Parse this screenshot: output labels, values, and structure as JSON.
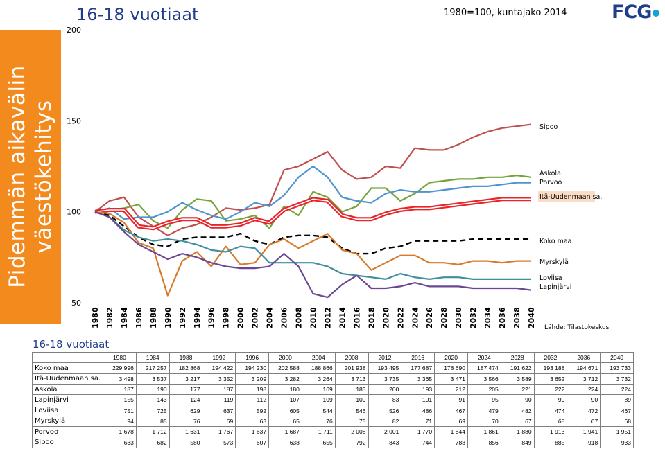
{
  "sidebar_text": [
    "Pidemmän aikavälin",
    "väestökehitys"
  ],
  "title": "16-18 vuotiaat",
  "subtitle": "1980=100, kuntajako 2014",
  "logo": "FCG",
  "source": "Lähde: Tilastokeskus",
  "table_title": "16-18 vuotiaat",
  "colors": {
    "sidebar": "#f28a1e",
    "title": "#1f3d8a",
    "Sipoo": "#c0504d",
    "Askola": "#77a33d",
    "Porvoo": "#4f94cd",
    "Itä-Uudenmaan sa.": "#e8242b",
    "Koko maa": "#000000",
    "Myrskylä": "#d97a2a",
    "Loviisa": "#3f8f9e",
    "Lapinjärvi": "#6b4793"
  },
  "chart_data": {
    "type": "line",
    "title": "16-18 vuotiaat",
    "subtitle": "1980=100, kuntajako 2014",
    "xlabel": "",
    "ylabel": "",
    "x": [
      1980,
      1982,
      1984,
      1986,
      1988,
      1990,
      1992,
      1994,
      1996,
      1998,
      2000,
      2002,
      2004,
      2006,
      2008,
      2010,
      2012,
      2014,
      2016,
      2018,
      2020,
      2022,
      2024,
      2026,
      2028,
      2030,
      2032,
      2034,
      2036,
      2038,
      2040
    ],
    "x_tick_labels": [
      "1980",
      "1982",
      "1984",
      "1986",
      "1988",
      "1990",
      "1992",
      "1994",
      "1996",
      "1998",
      "2000",
      "2002",
      "2004",
      "2006",
      "2008",
      "2010",
      "2012",
      "2014",
      "2016",
      "2018",
      "2020",
      "2022",
      "2024",
      "2026",
      "2028",
      "2030",
      "2032",
      "2034",
      "2036",
      "2038",
      "2040"
    ],
    "ylim": [
      50,
      200
    ],
    "y_ticks": [
      50,
      100,
      150,
      200
    ],
    "grid": false,
    "legend": "right, labels at line ends",
    "series": [
      {
        "name": "Sipoo",
        "color": "#c0504d",
        "dash": false,
        "width": 2.2,
        "values": [
          100,
          106,
          108,
          97,
          92,
          87,
          91,
          93,
          97,
          102,
          101,
          102,
          104,
          123,
          125,
          129,
          133,
          123,
          118,
          119,
          125,
          124,
          135,
          134,
          134,
          137,
          141,
          144,
          146,
          147,
          148
        ]
      },
      {
        "name": "Askola",
        "color": "#77a33d",
        "dash": false,
        "width": 2.2,
        "values": [
          100,
          101,
          102,
          104,
          95,
          91,
          101,
          107,
          106,
          95,
          96,
          98,
          91,
          103,
          98,
          111,
          108,
          100,
          103,
          113,
          113,
          106,
          110,
          116,
          117,
          118,
          118,
          119,
          119,
          120,
          119
        ]
      },
      {
        "name": "Porvoo",
        "color": "#4f94cd",
        "dash": false,
        "width": 2.2,
        "values": [
          100,
          102,
          96,
          97,
          97,
          100,
          105,
          101,
          98,
          96,
          100,
          105,
          103,
          109,
          119,
          125,
          119,
          108,
          106,
          105,
          110,
          112,
          111,
          111,
          112,
          113,
          114,
          114,
          115,
          116,
          116
        ]
      },
      {
        "name": "Itä-Uudenmaan sa.",
        "color": "#e8242b",
        "dash": false,
        "width": 2.2,
        "double": true,
        "values": [
          100,
          101,
          101,
          92,
          91,
          94,
          96,
          96,
          92,
          92,
          93,
          96,
          94,
          101,
          104,
          107,
          106,
          98,
          96,
          96,
          99,
          101,
          102,
          102,
          103,
          104,
          105,
          106,
          107,
          107,
          107
        ]
      },
      {
        "name": "Koko maa",
        "color": "#000000",
        "dash": true,
        "width": 2.4,
        "values": [
          100,
          98,
          92,
          86,
          82,
          81,
          85,
          86,
          86,
          86,
          88,
          84,
          82,
          86,
          87,
          87,
          86,
          80,
          77,
          77,
          80,
          81,
          84,
          84,
          84,
          84,
          85,
          85,
          85,
          85,
          85
        ]
      },
      {
        "name": "Myrskylä",
        "color": "#d97a2a",
        "dash": false,
        "width": 2.2,
        "values": [
          100,
          99,
          94,
          83,
          80,
          54,
          73,
          78,
          70,
          81,
          71,
          72,
          82,
          85,
          80,
          84,
          88,
          79,
          77,
          68,
          72,
          76,
          76,
          72,
          72,
          71,
          73,
          73,
          72,
          73,
          73
        ]
      },
      {
        "name": "Loviisa",
        "color": "#3f8f9e",
        "dash": false,
        "width": 2.2,
        "values": [
          100,
          97,
          90,
          86,
          84,
          85,
          84,
          82,
          79,
          78,
          81,
          80,
          72,
          72,
          72,
          72,
          70,
          66,
          65,
          64,
          63,
          66,
          64,
          63,
          64,
          64,
          63,
          63,
          63,
          63,
          63
        ]
      },
      {
        "name": "Lapinjärvi",
        "color": "#6b4793",
        "dash": false,
        "width": 2.2,
        "values": [
          100,
          97,
          89,
          82,
          78,
          74,
          77,
          75,
          72,
          70,
          69,
          69,
          70,
          77,
          70,
          55,
          53,
          60,
          65,
          58,
          58,
          59,
          61,
          59,
          59,
          59,
          58,
          58,
          58,
          58,
          57
        ]
      }
    ],
    "end_labels": [
      "Sipoo",
      "Askola",
      "Porvoo",
      "Itä-Uudenmaan sa.",
      "Koko maa",
      "Myrskylä",
      "Loviisa",
      "Lapinjärvi"
    ],
    "table": {
      "columns": [
        "1980",
        "1984",
        "1988",
        "1992",
        "1996",
        "2000",
        "2004",
        "2008",
        "2012",
        "2016",
        "2020",
        "2024",
        "2028",
        "2032",
        "2036",
        "2040"
      ],
      "rows": [
        {
          "name": "Koko maa",
          "values": [
            "229 996",
            "217 257",
            "182 868",
            "194 422",
            "194 230",
            "202 588",
            "188 866",
            "201 938",
            "193 495",
            "177 687",
            "178 690",
            "187 474",
            "191 622",
            "193 188",
            "194 671",
            "193 733"
          ]
        },
        {
          "name": "Itä-Uudenmaan sa.",
          "values": [
            "3 498",
            "3 537",
            "3 217",
            "3 352",
            "3 209",
            "3 282",
            "3 264",
            "3 713",
            "3 735",
            "3 365",
            "3 471",
            "3 566",
            "3 589",
            "3 652",
            "3 712",
            "3 732"
          ]
        },
        {
          "name": "Askola",
          "values": [
            "187",
            "190",
            "177",
            "187",
            "198",
            "180",
            "169",
            "183",
            "200",
            "193",
            "212",
            "205",
            "221",
            "222",
            "224",
            "224"
          ]
        },
        {
          "name": "Lapinjärvi",
          "values": [
            "155",
            "143",
            "124",
            "119",
            "112",
            "107",
            "109",
            "109",
            "83",
            "101",
            "91",
            "95",
            "90",
            "90",
            "90",
            "89"
          ]
        },
        {
          "name": "Loviisa",
          "values": [
            "751",
            "725",
            "629",
            "637",
            "592",
            "605",
            "544",
            "546",
            "526",
            "486",
            "467",
            "479",
            "482",
            "474",
            "472",
            "467"
          ]
        },
        {
          "name": "Myrskylä",
          "values": [
            "94",
            "85",
            "76",
            "69",
            "63",
            "65",
            "76",
            "75",
            "82",
            "71",
            "69",
            "70",
            "67",
            "68",
            "67",
            "68"
          ]
        },
        {
          "name": "Porvoo",
          "values": [
            "1 678",
            "1 712",
            "1 631",
            "1 767",
            "1 637",
            "1 687",
            "1 711",
            "2 008",
            "2 001",
            "1 770",
            "1 844",
            "1 861",
            "1 880",
            "1 913",
            "1 941",
            "1 951"
          ]
        },
        {
          "name": "Sipoo",
          "values": [
            "633",
            "682",
            "580",
            "573",
            "607",
            "638",
            "655",
            "792",
            "843",
            "744",
            "788",
            "856",
            "849",
            "885",
            "918",
            "933"
          ]
        }
      ]
    }
  }
}
